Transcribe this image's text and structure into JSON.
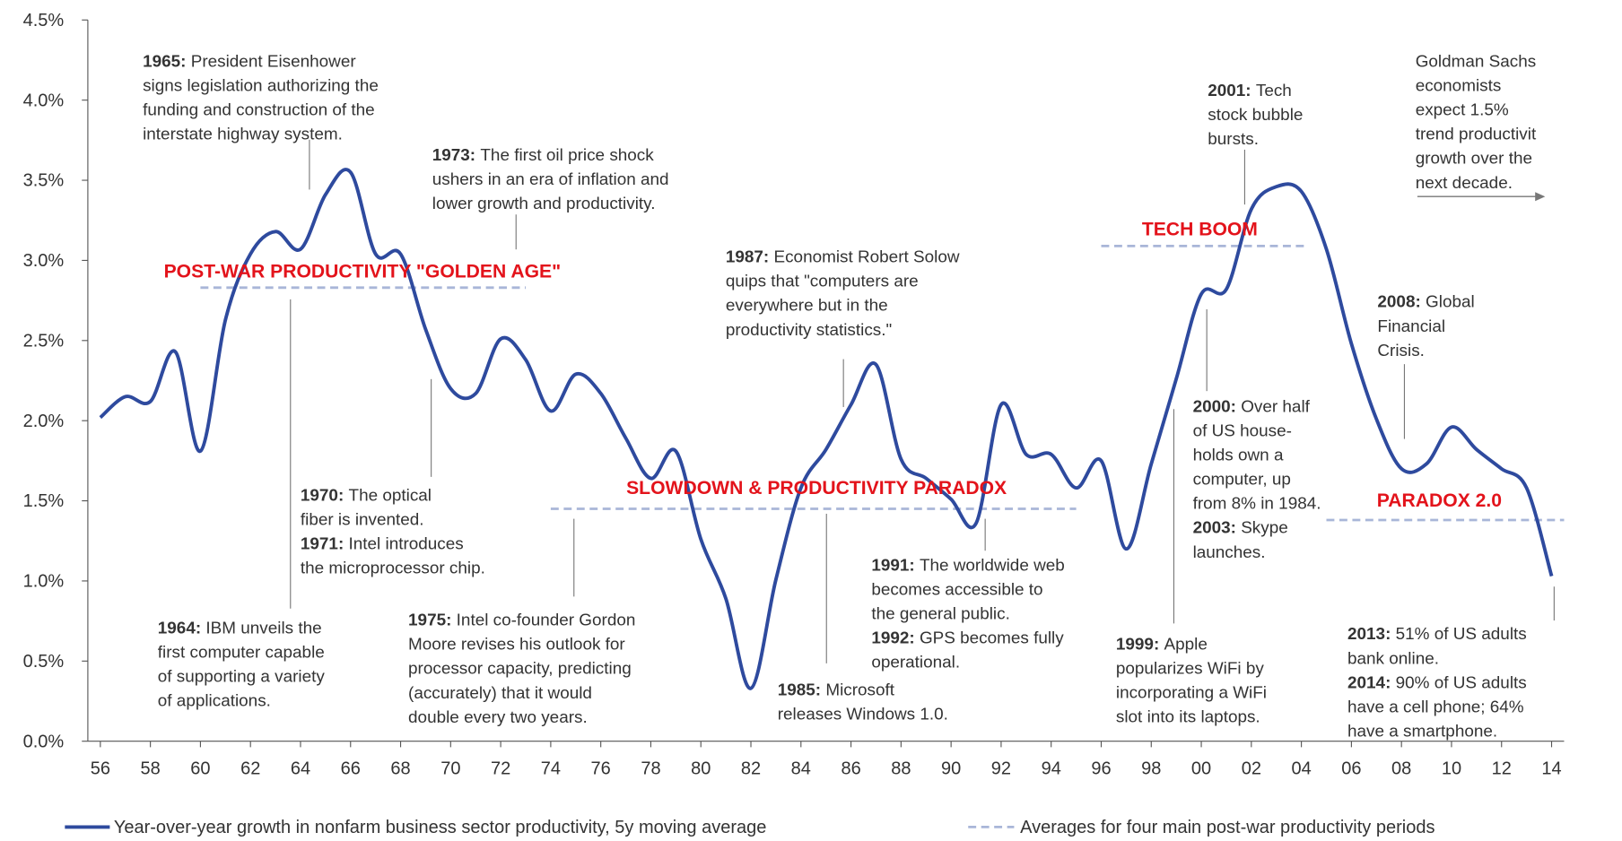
{
  "chart_data": {
    "type": "line",
    "x": [
      1956,
      1957,
      1958,
      1959,
      1960,
      1961,
      1962,
      1963,
      1964,
      1965,
      1966,
      1967,
      1968,
      1969,
      1970,
      1971,
      1972,
      1973,
      1974,
      1975,
      1976,
      1977,
      1978,
      1979,
      1980,
      1981,
      1982,
      1983,
      1984,
      1985,
      1986,
      1987,
      1988,
      1989,
      1990,
      1991,
      1992,
      1993,
      1994,
      1995,
      1996,
      1997,
      1998,
      1999,
      2000,
      2001,
      2002,
      2003,
      2004,
      2005,
      2006,
      2007,
      2008,
      2009,
      2010,
      2011,
      2012,
      2013,
      2014
    ],
    "series": [
      {
        "name": "Year-over-year growth in nonfarm business sector productivity, 5y moving average",
        "color": "#2e4a9e",
        "values": [
          2.02,
          2.15,
          2.12,
          2.43,
          1.81,
          2.63,
          3.04,
          3.18,
          3.07,
          3.41,
          3.55,
          3.04,
          3.04,
          2.57,
          2.2,
          2.17,
          2.51,
          2.38,
          2.06,
          2.29,
          2.17,
          1.89,
          1.64,
          1.81,
          1.26,
          0.89,
          0.33,
          1.01,
          1.58,
          1.82,
          2.1,
          2.35,
          1.76,
          1.64,
          1.51,
          1.36,
          2.1,
          1.79,
          1.79,
          1.58,
          1.75,
          1.2,
          1.73,
          2.26,
          2.79,
          2.82,
          3.32,
          3.46,
          3.43,
          3.07,
          2.48,
          2.01,
          1.7,
          1.73,
          1.96,
          1.82,
          1.7,
          1.58,
          1.03
        ]
      }
    ],
    "periods": {
      "name": "Averages for four main post-war productivity periods",
      "color": "#a9b6d8",
      "items": [
        {
          "label": "POST-WAR PRODUCTIVITY \"GOLDEN AGE\"",
          "start": 1960,
          "end": 1973,
          "value": 2.83
        },
        {
          "label": "SLOWDOWN & PRODUCTIVITY PARADOX",
          "start": 1974,
          "end": 1995,
          "value": 1.45
        },
        {
          "label": "TECH BOOM",
          "start": 1996,
          "end": 2004.2,
          "value": 3.09
        },
        {
          "label": "PARADOX 2.0",
          "start": 2005,
          "end": 2014.5,
          "value": 1.38
        }
      ]
    },
    "xlim": [
      1955.5,
      2014.5
    ],
    "xticks": [
      {
        "value": 1956,
        "label": "56"
      },
      {
        "value": 1958,
        "label": "58"
      },
      {
        "value": 1960,
        "label": "60"
      },
      {
        "value": 1962,
        "label": "62"
      },
      {
        "value": 1964,
        "label": "64"
      },
      {
        "value": 1966,
        "label": "66"
      },
      {
        "value": 1968,
        "label": "68"
      },
      {
        "value": 1970,
        "label": "70"
      },
      {
        "value": 1972,
        "label": "72"
      },
      {
        "value": 1974,
        "label": "74"
      },
      {
        "value": 1976,
        "label": "76"
      },
      {
        "value": 1978,
        "label": "78"
      },
      {
        "value": 1980,
        "label": "80"
      },
      {
        "value": 1982,
        "label": "82"
      },
      {
        "value": 1984,
        "label": "84"
      },
      {
        "value": 1986,
        "label": "86"
      },
      {
        "value": 1988,
        "label": "88"
      },
      {
        "value": 1990,
        "label": "90"
      },
      {
        "value": 1992,
        "label": "92"
      },
      {
        "value": 1994,
        "label": "94"
      },
      {
        "value": 1996,
        "label": "96"
      },
      {
        "value": 1998,
        "label": "98"
      },
      {
        "value": 2000,
        "label": "00"
      },
      {
        "value": 2002,
        "label": "02"
      },
      {
        "value": 2004,
        "label": "04"
      },
      {
        "value": 2006,
        "label": "06"
      },
      {
        "value": 2008,
        "label": "08"
      },
      {
        "value": 2010,
        "label": "10"
      },
      {
        "value": 2012,
        "label": "12"
      },
      {
        "value": 2014,
        "label": "14"
      }
    ],
    "ylim": [
      0,
      4.5
    ],
    "yticks": [
      {
        "value": 0,
        "label": "0.0%"
      },
      {
        "value": 0.5,
        "label": "0.5%"
      },
      {
        "value": 1,
        "label": "1.0%"
      },
      {
        "value": 1.5,
        "label": "1.5%"
      },
      {
        "value": 2,
        "label": "2.0%"
      },
      {
        "value": 2.5,
        "label": "2.5%"
      },
      {
        "value": 3,
        "label": "3.0%"
      },
      {
        "value": 3.5,
        "label": "3.5%"
      },
      {
        "value": 4,
        "label": "4.0%"
      },
      {
        "value": 4.5,
        "label": "4.5%"
      }
    ],
    "annotations": [
      {
        "items": [
          {
            "label": "1965:",
            "lines": [
              "President Eisenhower",
              "signs legislation authorizing the",
              "funding and construction of the",
              "interstate highway system."
            ]
          }
        ]
      },
      {
        "items": [
          {
            "label": "1973:",
            "lines": [
              "The first oil price shock",
              "ushers in an era of inflation and",
              "lower growth and productivity."
            ]
          }
        ]
      },
      {
        "items": [
          {
            "label": "1987:",
            "lines": [
              "Economist Robert Solow",
              "quips that \"computers are",
              "everywhere but in the",
              "productivity statistics.\""
            ]
          }
        ]
      },
      {
        "items": [
          {
            "label": "2001:",
            "lines": [
              "Tech",
              "stock bubble",
              "bursts."
            ]
          }
        ]
      },
      {
        "items": [
          {
            "lines": [
              "Goldman Sachs",
              "economists",
              "expect 1.5%",
              "trend productivit",
              "growth over the",
              "next decade."
            ]
          }
        ]
      },
      {
        "items": [
          {
            "label": "2008:",
            "lines": [
              "Global",
              "Financial",
              "Crisis."
            ]
          }
        ]
      },
      {
        "items": [
          {
            "label": "2000:",
            "lines": [
              "Over half",
              "of US house-",
              "holds own a",
              "computer, up",
              "from 8% in 1984."
            ]
          },
          {
            "label": "2003:",
            "lines": [
              "Skype",
              "launches."
            ]
          }
        ]
      },
      {
        "items": [
          {
            "label": "1970:",
            "lines": [
              "The optical",
              "fiber is invented."
            ]
          },
          {
            "label": "1971:",
            "lines": [
              "Intel introduces",
              "the microprocessor chip."
            ]
          }
        ]
      },
      {
        "items": [
          {
            "label": "1964:",
            "lines": [
              "IBM unveils the",
              "first computer capable",
              "of supporting a variety",
              "of applications."
            ]
          }
        ]
      },
      {
        "items": [
          {
            "label": "1975:",
            "lines": [
              "Intel co-founder Gordon",
              "Moore revises his outlook for",
              "processor capacity, predicting",
              "(accurately) that it would",
              "double every two years."
            ]
          }
        ]
      },
      {
        "items": [
          {
            "label": "1991:",
            "lines": [
              "The worldwide web",
              "becomes accessible to",
              "the general public."
            ]
          },
          {
            "label": "1992:",
            "lines": [
              "GPS becomes fully",
              "operational."
            ]
          }
        ]
      },
      {
        "items": [
          {
            "label": "1985:",
            "lines": [
              "Microsoft",
              "releases Windows 1.0."
            ]
          }
        ]
      },
      {
        "items": [
          {
            "label": "1999:",
            "lines": [
              "Apple",
              "popularizes WiFi by",
              "incorporating a WiFi",
              "slot into its laptops."
            ]
          }
        ]
      },
      {
        "items": [
          {
            "label": "2013:",
            "lines": [
              "51% of US adults",
              "bank online."
            ]
          },
          {
            "label": "2014:",
            "lines": [
              "90% of US adults",
              "have a cell phone; 64%",
              "have a smartphone."
            ]
          }
        ]
      }
    ]
  }
}
